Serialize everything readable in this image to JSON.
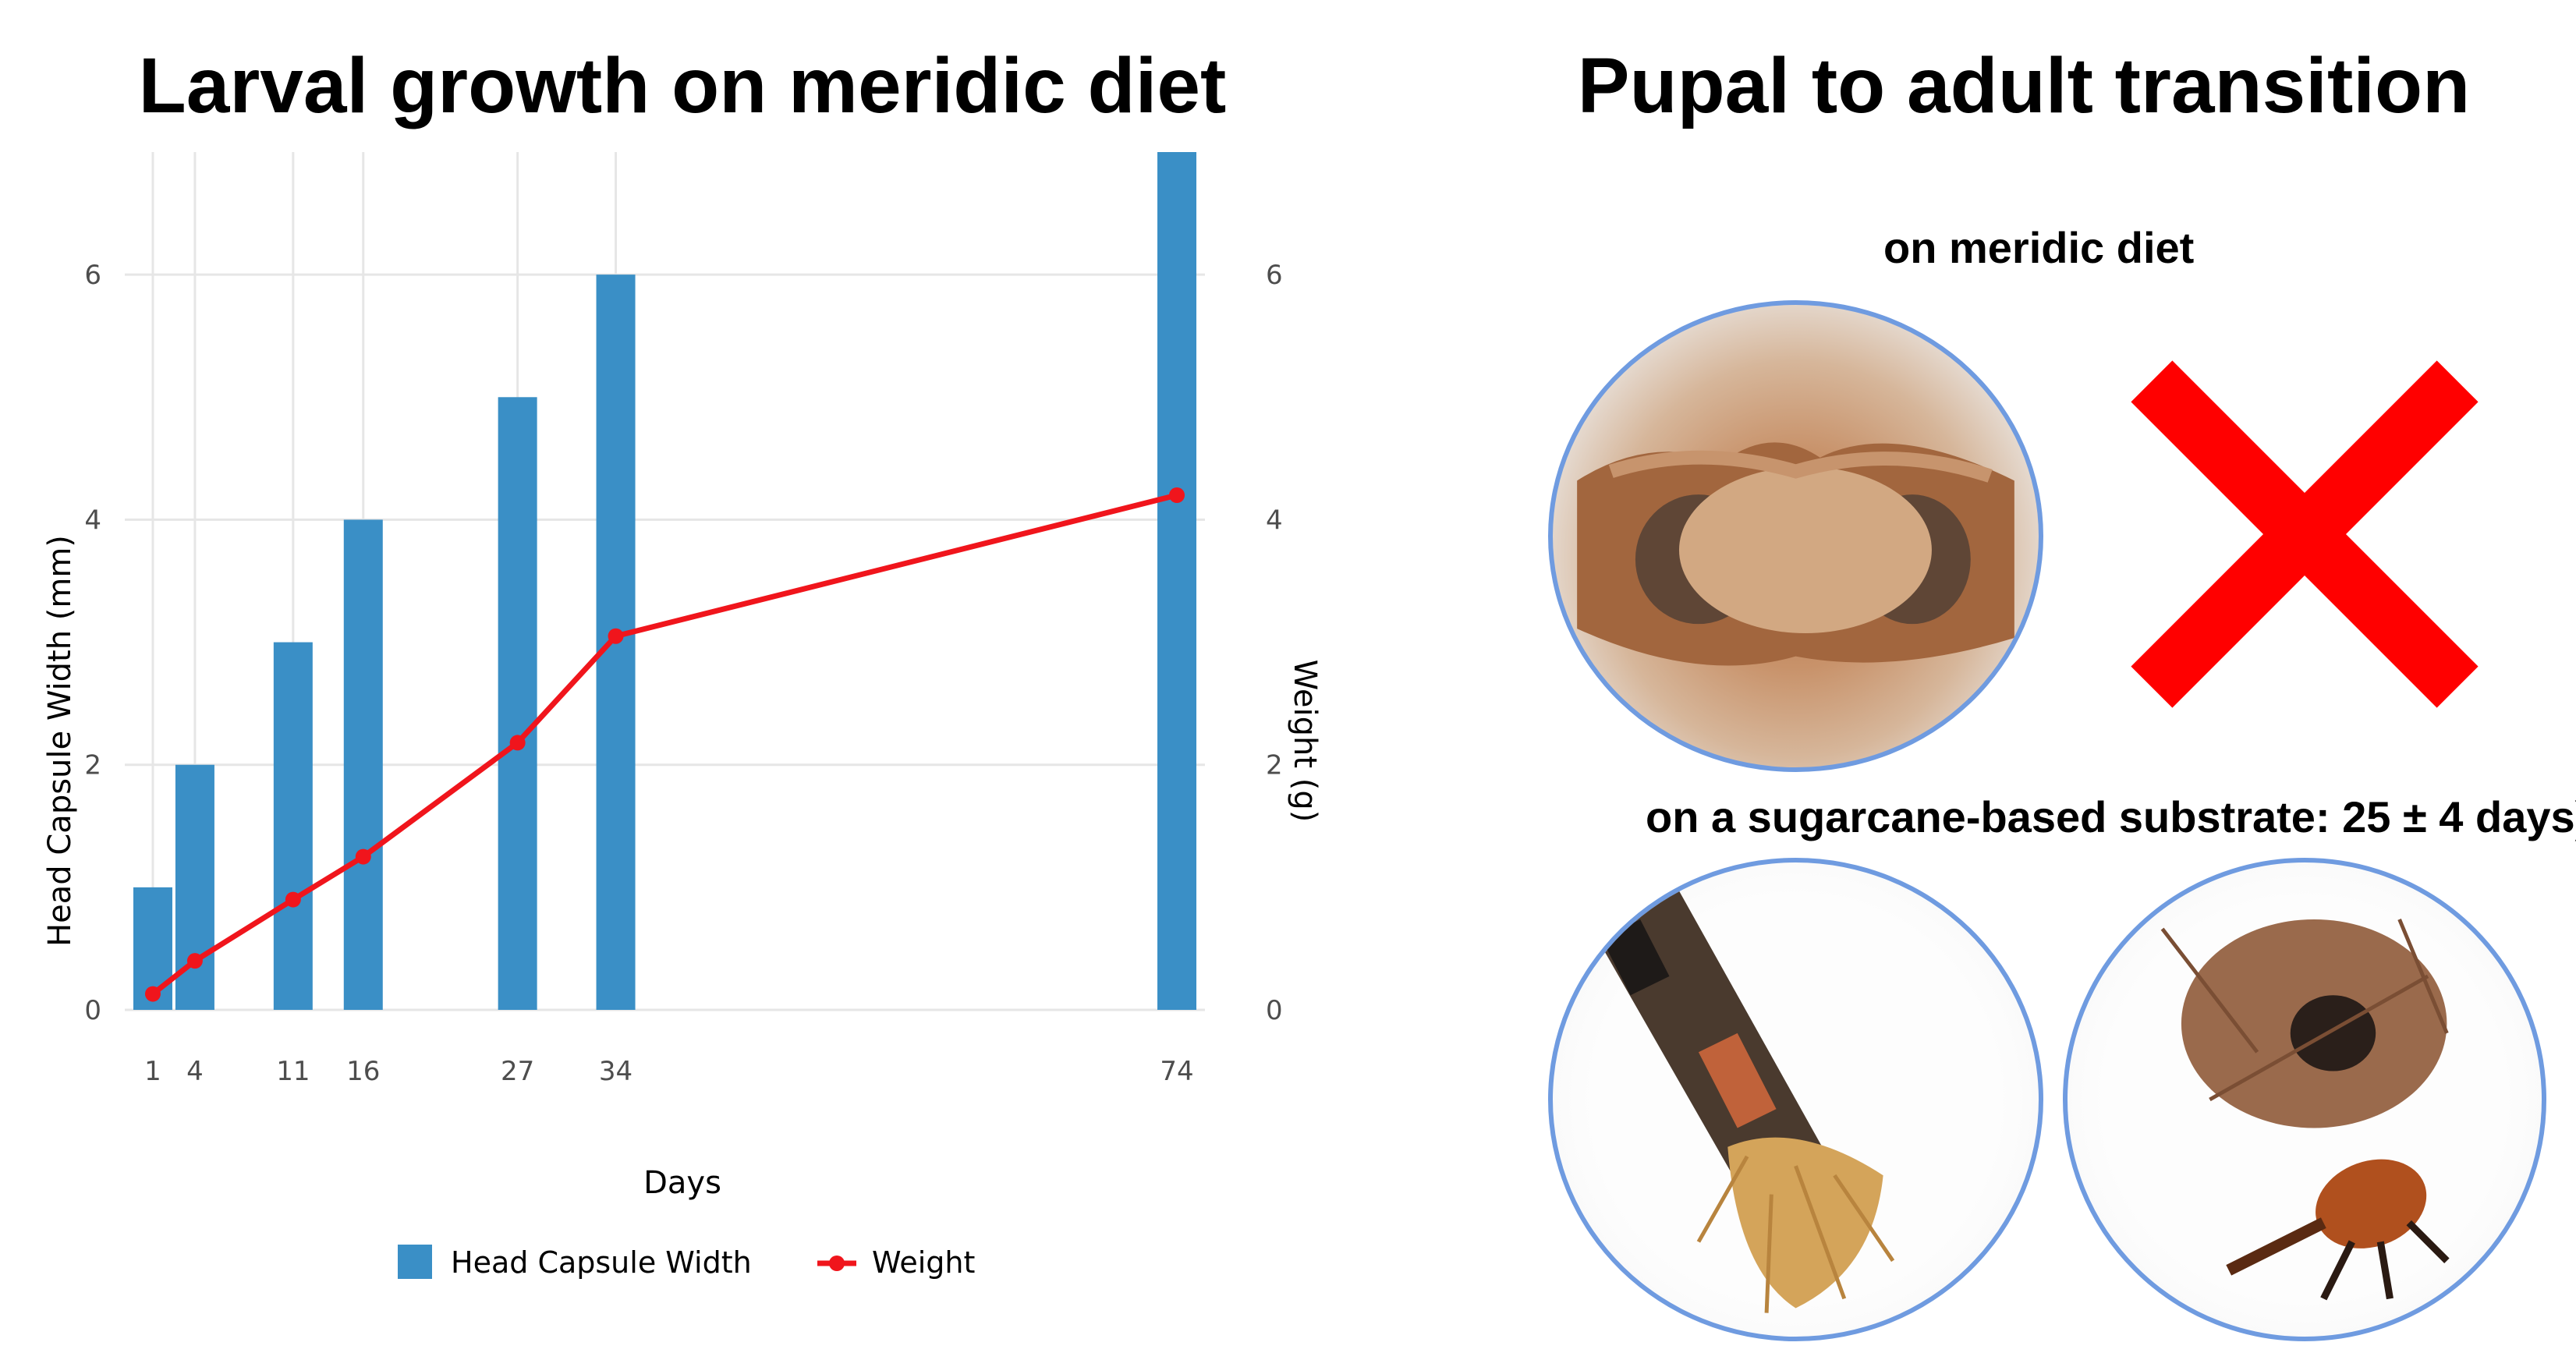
{
  "titles": {
    "left": "Larval growth on meridic diet",
    "right": "Pupal to adult transition"
  },
  "labels": {
    "meridic": "on meridic diet",
    "sugarcane": "on a sugarcane-based substrate: 25 ± 4 days)"
  },
  "photos": {
    "pupa": "pupa-in-meridic-diet-photo",
    "stalk": "sugarcane-stalk-cocoon-photo",
    "adult": "fiber-cocoon-and-adult-weevil-photo"
  },
  "colors": {
    "bar": "#3a8fc6",
    "line": "#f0151c",
    "cross": "#ff0000",
    "circle": "#6f9be0"
  },
  "chart_data": {
    "type": "bar",
    "title": "Larval growth on meridic diet",
    "xlabel": "Days",
    "ylabel": "Head Capsule Width (mm)",
    "y2label": "Weight (g)",
    "x_ticks": [
      1,
      4,
      11,
      16,
      27,
      34,
      74
    ],
    "xlim": [
      -1,
      76
    ],
    "ylim": [
      0,
      7
    ],
    "y_ticks": [
      0,
      2,
      4,
      6
    ],
    "y2_ticks": [
      0,
      2,
      4,
      6
    ],
    "grid": true,
    "legend_position": "bottom",
    "series": [
      {
        "name": "Head Capsule Width",
        "kind": "bar",
        "axis": "left",
        "x": [
          1,
          4,
          11,
          16,
          27,
          34,
          74
        ],
        "values": [
          1,
          2,
          3,
          4,
          5,
          6,
          7
        ]
      },
      {
        "name": "Weight",
        "kind": "line",
        "axis": "right",
        "x": [
          1,
          4,
          11,
          16,
          27,
          34,
          74
        ],
        "values": [
          0.13,
          0.4,
          0.9,
          1.25,
          2.18,
          3.05,
          4.2
        ]
      }
    ]
  }
}
